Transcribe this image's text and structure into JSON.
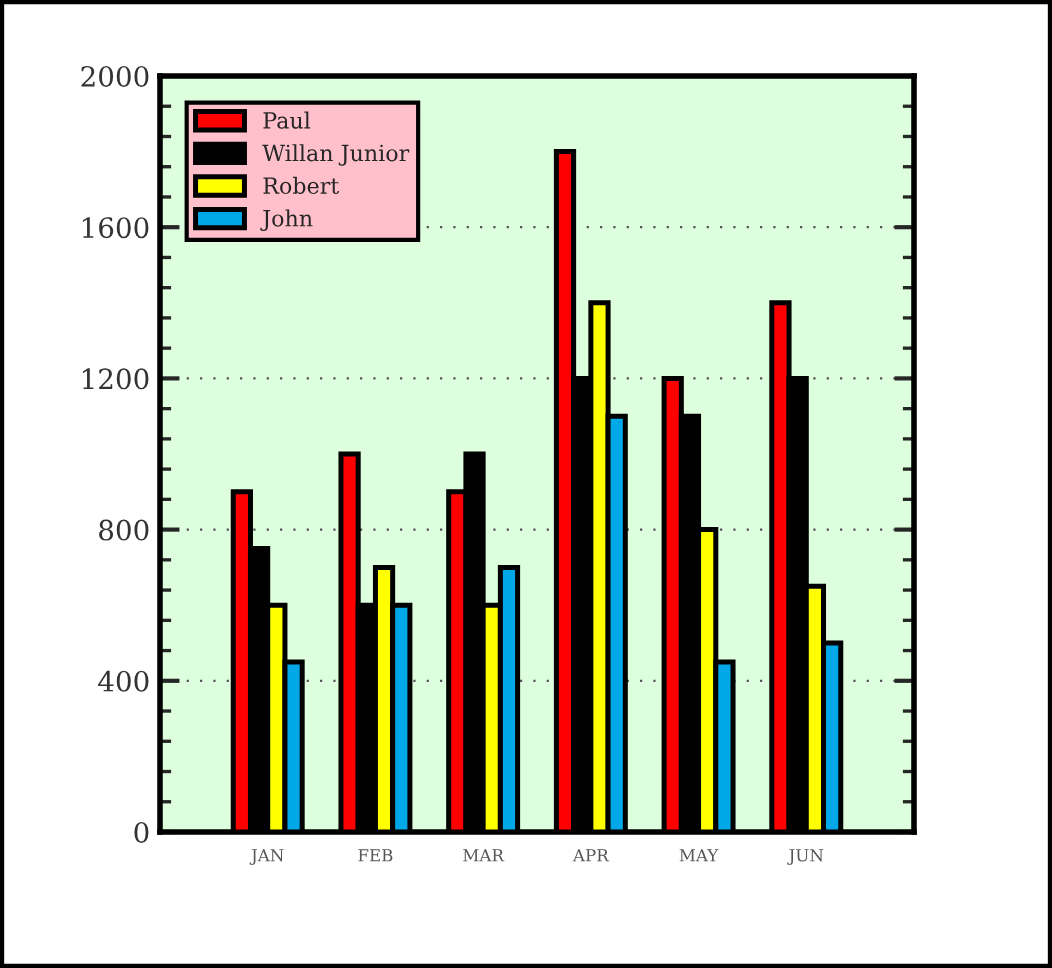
{
  "chart_data": {
    "type": "bar",
    "categories": [
      "JAN",
      "FEB",
      "MAR",
      "APR",
      "MAY",
      "JUN"
    ],
    "series": [
      {
        "name": "Paul",
        "color": "#ff0000",
        "values": [
          900,
          1000,
          900,
          1800,
          1200,
          1400
        ]
      },
      {
        "name": "Willan Junior",
        "color": "#000000",
        "values": [
          750,
          600,
          1000,
          1200,
          1100,
          1200
        ]
      },
      {
        "name": "Robert",
        "color": "#ffff00",
        "values": [
          600,
          700,
          600,
          1400,
          800,
          650
        ]
      },
      {
        "name": "John",
        "color": "#00a8e8",
        "values": [
          450,
          600,
          700,
          1100,
          450,
          500
        ]
      }
    ],
    "ylim": [
      0,
      2000
    ],
    "yticks": [
      0,
      400,
      800,
      1200,
      1600,
      2000
    ],
    "grid": "y",
    "legend": "top left"
  }
}
